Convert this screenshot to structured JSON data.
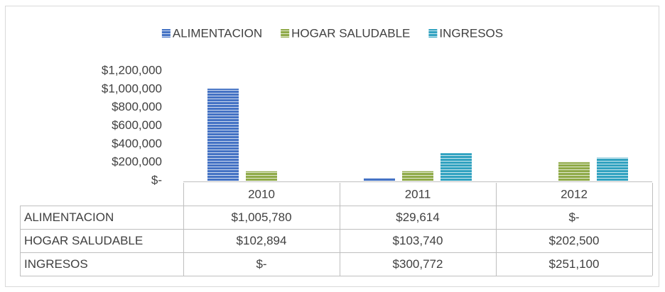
{
  "chart_data": {
    "type": "bar",
    "categories": [
      "2010",
      "2011",
      "2012"
    ],
    "series": [
      {
        "name": "ALIMENTACION",
        "color": "#4472c4",
        "values": [
          1005780,
          29614,
          0
        ],
        "value_labels": [
          "$1,005,780",
          "$29,614",
          "$-"
        ]
      },
      {
        "name": "HOGAR SALUDABLE",
        "color": "#8faa48",
        "values": [
          102894,
          103740,
          202500
        ],
        "value_labels": [
          "$102,894",
          "$103,740",
          "$202,500"
        ]
      },
      {
        "name": "INGRESOS",
        "color": "#31a2c0",
        "values": [
          0,
          300772,
          251100
        ],
        "value_labels": [
          "$-",
          "$300,772",
          "$251,100"
        ]
      }
    ],
    "ylim": [
      0,
      1200000
    ],
    "yticks": [
      {
        "value": 0,
        "label": "$-"
      },
      {
        "value": 200000,
        "label": "$200,000"
      },
      {
        "value": 400000,
        "label": "$400,000"
      },
      {
        "value": 600000,
        "label": "$600,000"
      },
      {
        "value": 800000,
        "label": "$800,000"
      },
      {
        "value": 1000000,
        "label": "$1,000,000"
      },
      {
        "value": 1200000,
        "label": "$1,200,000"
      }
    ],
    "legend": "top"
  }
}
